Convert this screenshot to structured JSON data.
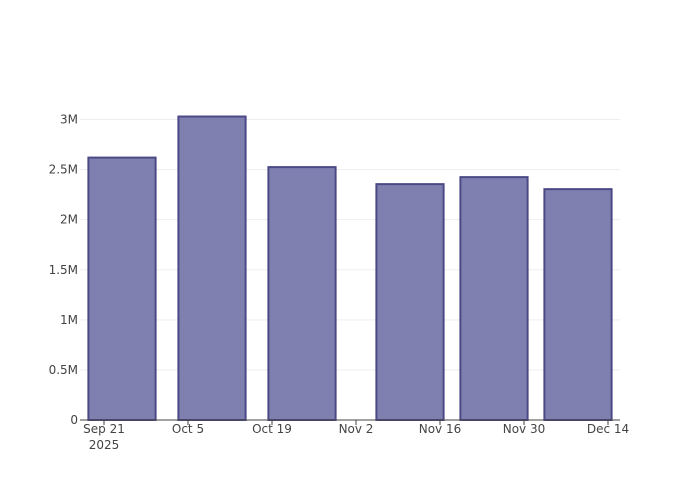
{
  "chart_data": {
    "type": "bar",
    "x": [
      "2025-09-24",
      "2025-10-09",
      "2025-10-24",
      "2025-11-11",
      "2025-11-25",
      "2025-12-09"
    ],
    "values": [
      2620000,
      3030000,
      2525000,
      2355000,
      2425000,
      2305000
    ],
    "color": "#7f7fb0",
    "line_color": "#4b4a86",
    "xlim": [
      "2025-09-17",
      "2025-12-16"
    ],
    "xticks": [
      {
        "value": "2025-09-21",
        "label": "Sep 21\n2025"
      },
      {
        "value": "2025-10-05",
        "label": "Oct 5"
      },
      {
        "value": "2025-10-19",
        "label": "Oct 19"
      },
      {
        "value": "2025-11-02",
        "label": "Nov 2"
      },
      {
        "value": "2025-11-16",
        "label": "Nov 16"
      },
      {
        "value": "2025-11-30",
        "label": "Nov 30"
      },
      {
        "value": "2025-12-14",
        "label": "Dec 14"
      }
    ],
    "ylim": [
      0,
      3195000
    ],
    "yticks": [
      0,
      {
        "value": 500000,
        "label": "0.5M"
      },
      {
        "value": 1000000,
        "label": "1M"
      },
      {
        "value": 1500000,
        "label": "1.5M"
      },
      {
        "value": 2000000,
        "label": "2M"
      },
      {
        "value": 2500000,
        "label": "2.5M"
      },
      {
        "value": 3000000,
        "label": "3M"
      }
    ],
    "grid": true
  }
}
